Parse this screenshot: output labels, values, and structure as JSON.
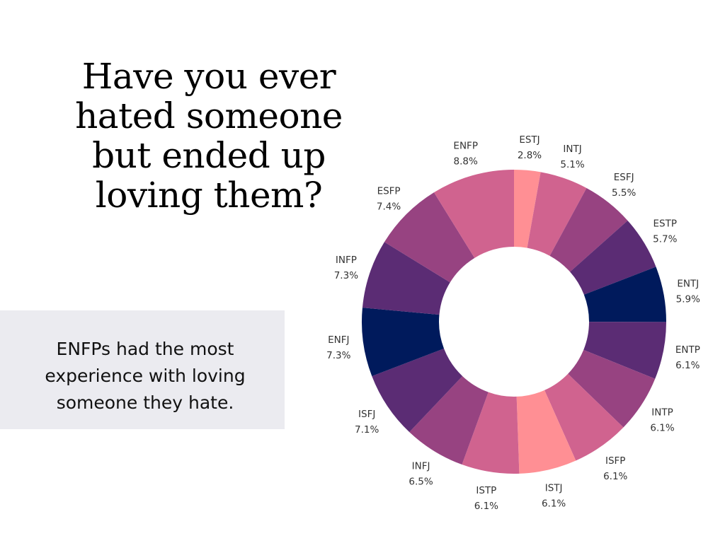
{
  "title": "Have you ever hated someone but ended up loving them?",
  "note": "ENFPs had the most experience with loving someone they hate.",
  "chart_data": {
    "type": "pie",
    "style": "donut",
    "start": "top",
    "direction": "clockwise",
    "title": "",
    "slices": [
      {
        "label": "ESTJ",
        "value": 2.8,
        "display": "2.8%",
        "color": "#ff8f94"
      },
      {
        "label": "INTJ",
        "value": 5.1,
        "display": "5.1%",
        "color": "#d0638f"
      },
      {
        "label": "ESFJ",
        "value": 5.5,
        "display": "5.5%",
        "color": "#974381"
      },
      {
        "label": "ESTP",
        "value": 5.7,
        "display": "5.7%",
        "color": "#5b2c74"
      },
      {
        "label": "ENTJ",
        "value": 5.9,
        "display": "5.9%",
        "color": "#001a5c"
      },
      {
        "label": "ENTP",
        "value": 6.1,
        "display": "6.1%",
        "color": "#5b2c74"
      },
      {
        "label": "INTP",
        "value": 6.1,
        "display": "6.1%",
        "color": "#974381"
      },
      {
        "label": "ISFP",
        "value": 6.1,
        "display": "6.1%",
        "color": "#d0638f"
      },
      {
        "label": "ISTJ",
        "value": 6.1,
        "display": "6.1%",
        "color": "#ff8f94"
      },
      {
        "label": "ISTP",
        "value": 6.1,
        "display": "6.1%",
        "color": "#d0638f"
      },
      {
        "label": "INFJ",
        "value": 6.5,
        "display": "6.5%",
        "color": "#974381"
      },
      {
        "label": "ISFJ",
        "value": 7.1,
        "display": "7.1%",
        "color": "#5b2c74"
      },
      {
        "label": "ENFJ",
        "value": 7.3,
        "display": "7.3%",
        "color": "#001a5c"
      },
      {
        "label": "INFP",
        "value": 7.3,
        "display": "7.3%",
        "color": "#5b2c74"
      },
      {
        "label": "ESFP",
        "value": 7.4,
        "display": "7.4%",
        "color": "#974381"
      },
      {
        "label": "ENFP",
        "value": 8.8,
        "display": "8.8%",
        "color": "#d0638f"
      }
    ]
  }
}
